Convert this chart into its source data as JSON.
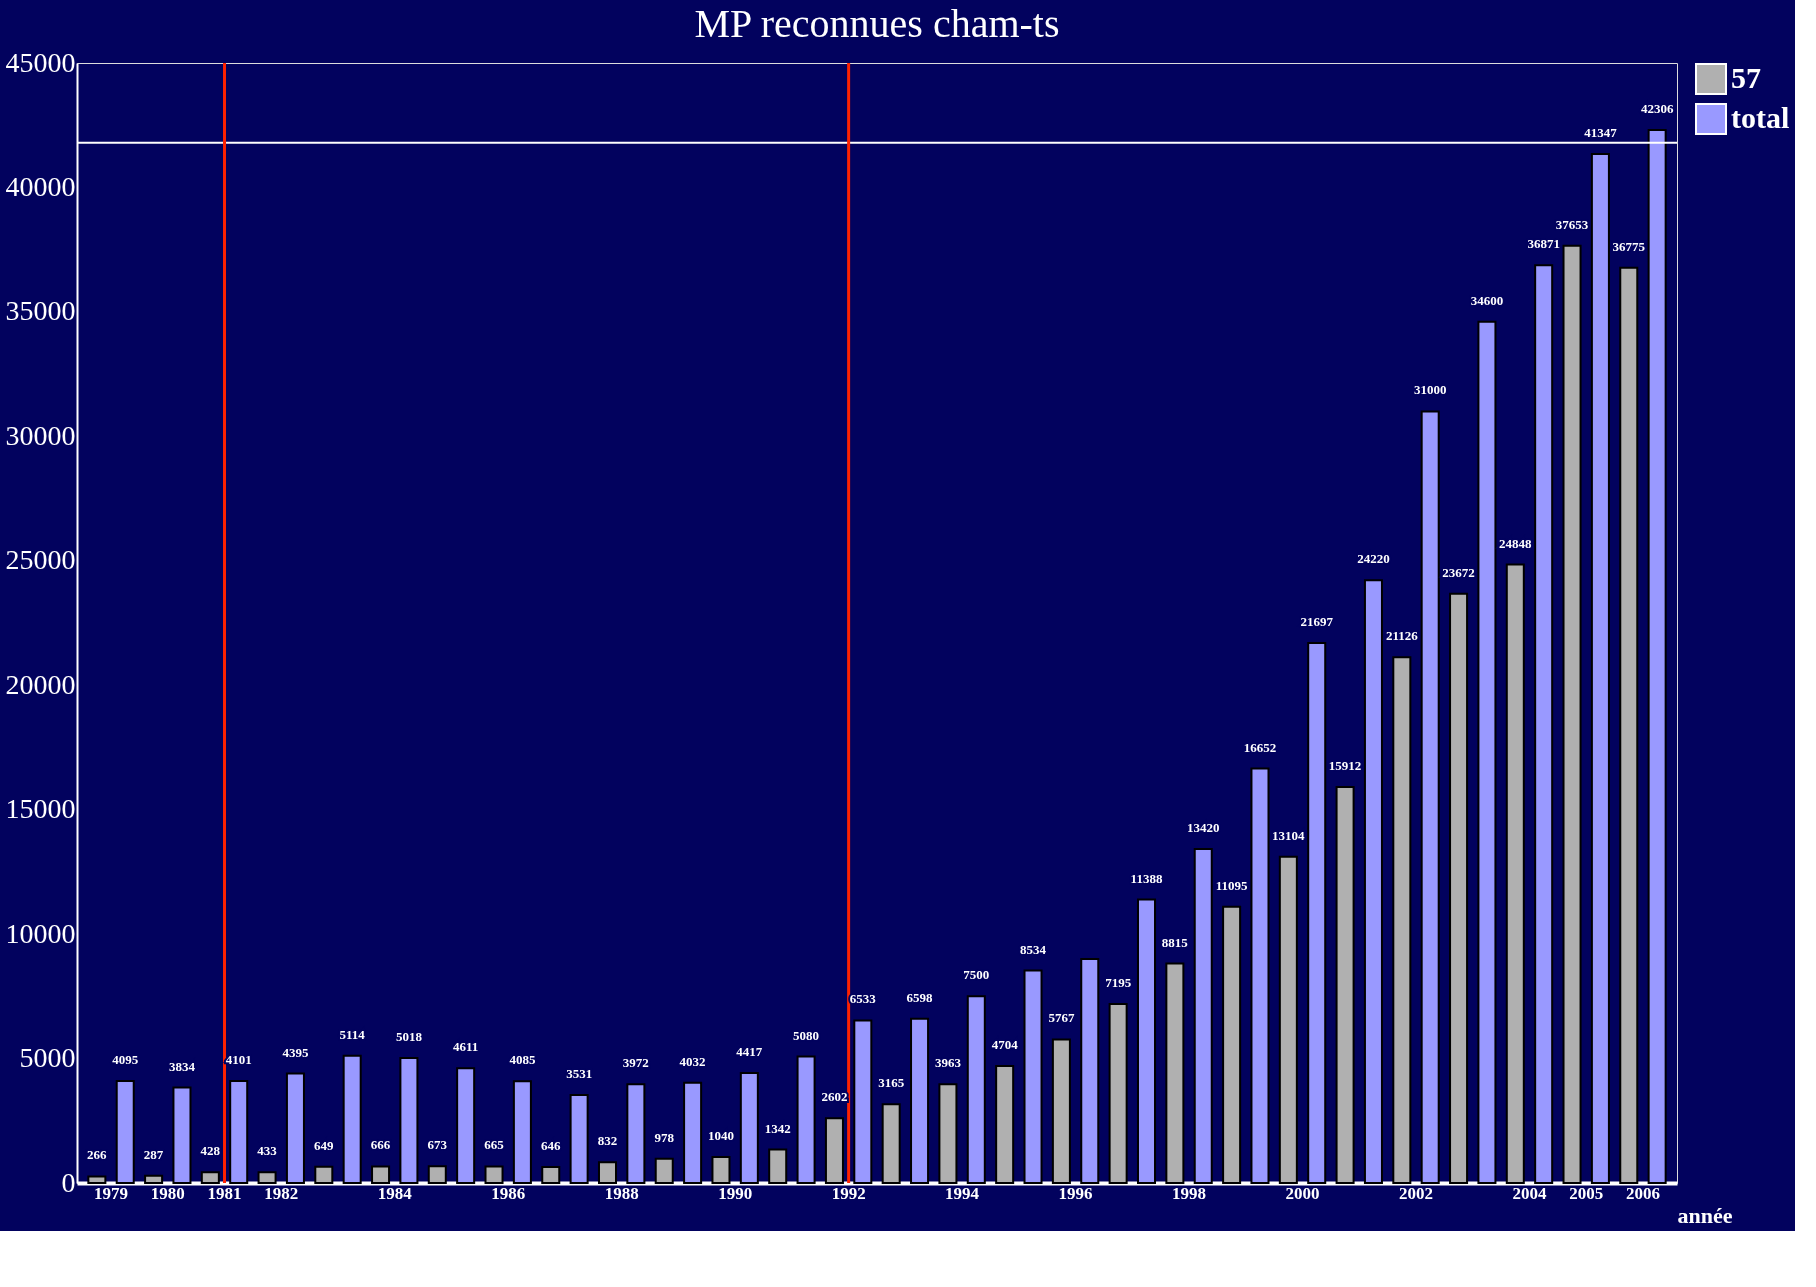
{
  "chart_data": {
    "type": "bar",
    "title": "MP reconnues      cham-ts",
    "xlabel": "année",
    "categories": [
      "1979",
      "1980",
      "1981",
      "1982",
      null,
      "1984",
      null,
      "1986",
      null,
      "1988",
      null,
      "1990",
      null,
      "1992",
      null,
      "1994",
      null,
      "1996",
      null,
      "1998",
      null,
      "2000",
      null,
      "2002",
      null,
      "2004",
      "2005",
      "2006"
    ],
    "series": [
      {
        "name": "57",
        "color": "#b0b0b0",
        "values": [
          266,
          287,
          428,
          433,
          649,
          666,
          673,
          665,
          646,
          832,
          978,
          1040,
          1342,
          2602,
          3165,
          3963,
          4704,
          5767,
          7195,
          8815,
          11095,
          13104,
          15912,
          21126,
          23672,
          24848,
          37653,
          36775
        ],
        "value_labels": [
          "266",
          "287",
          "428",
          "433",
          "649",
          "666",
          "673",
          "665",
          "646",
          "832",
          "978",
          "1040",
          "1342",
          "2602",
          "3165",
          "3963",
          "4704",
          "5767",
          "7195",
          "8815",
          "11095",
          "13104",
          "15912",
          "21126",
          "23672",
          "24848",
          "37653",
          "36775"
        ]
      },
      {
        "name": "total",
        "color": "#9999ff",
        "values": [
          4095,
          3834,
          4101,
          4395,
          5114,
          5018,
          4611,
          4085,
          3531,
          3972,
          4032,
          4417,
          5080,
          6533,
          6598,
          7500,
          8534,
          9000,
          11388,
          13420,
          16652,
          21697,
          24220,
          31000,
          34600,
          36871,
          41347,
          42306
        ],
        "value_labels": [
          "4095",
          "3834",
          "4101",
          "4395",
          "5114",
          "5018",
          "4611",
          "4085",
          "3531",
          "3972",
          "4032",
          "4417",
          "5080",
          "6533",
          "6598",
          "7500",
          "8534",
          null,
          "11388",
          "13420",
          "16652",
          "21697",
          "24220",
          "31000",
          "34600",
          "36871",
          "41347",
          "42306"
        ]
      }
    ],
    "ylim": [
      0,
      45000
    ],
    "yticks": [
      0,
      5000,
      10000,
      15000,
      20000,
      25000,
      30000,
      35000,
      40000,
      45000
    ],
    "ref_lines": [
      {
        "axis": "y",
        "value": 41800,
        "color": "#ffffff"
      },
      {
        "axis": "x",
        "value": "1981",
        "color": "#ff2200"
      },
      {
        "axis": "x",
        "value": "1992",
        "color": "#ff2200"
      }
    ],
    "grid": false,
    "legend": "top right"
  }
}
